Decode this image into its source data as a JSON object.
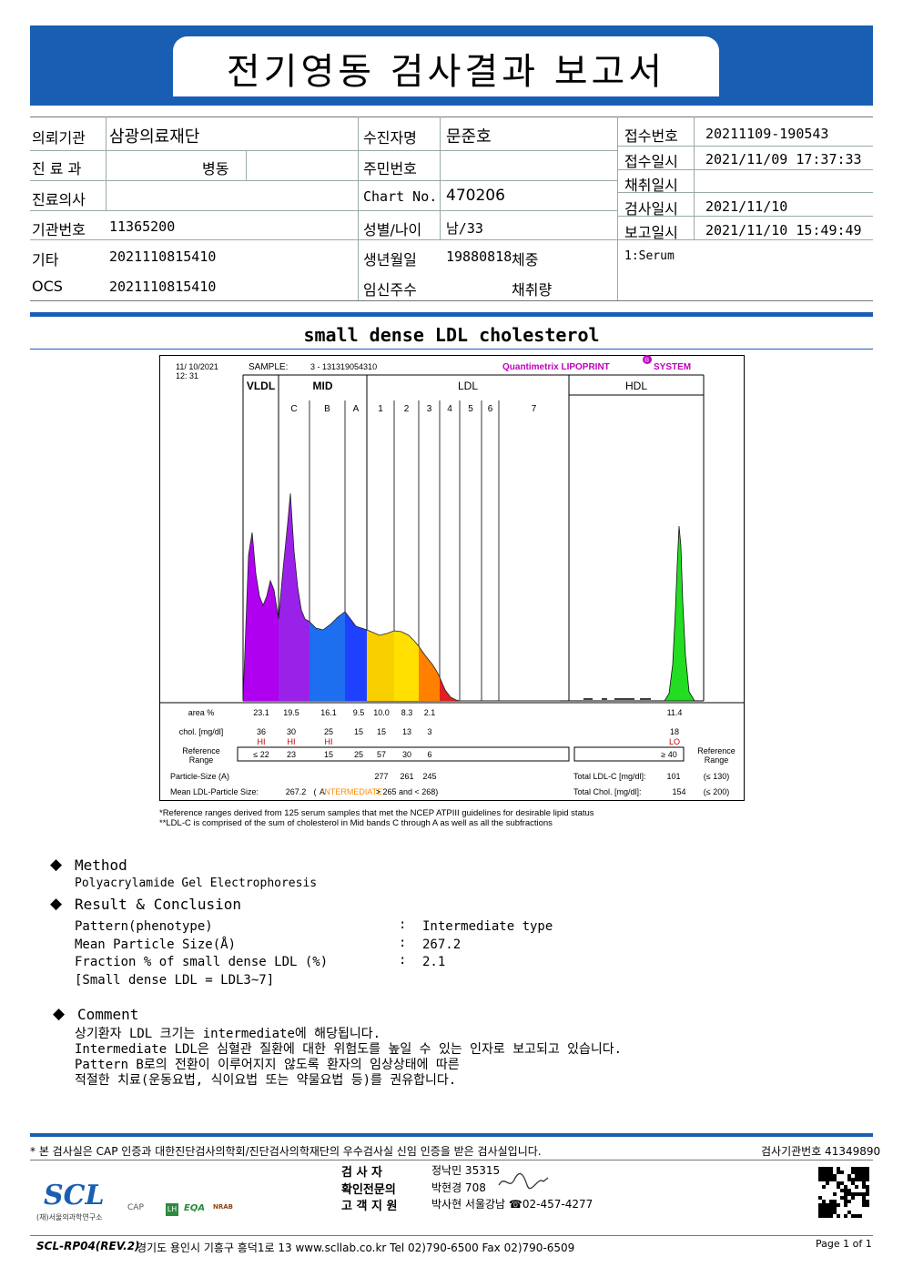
{
  "title": "전기영동 검사결과 보고서",
  "info": {
    "institution_label": "의뢰기관",
    "institution": "삼광의료재단",
    "dept_label": "진 료 과",
    "dept": "병동",
    "doctor_label": "진료의사",
    "inst_no_label": "기관번호",
    "inst_no": "11365200",
    "etc_label": "기타",
    "etc": "2021110815410",
    "ocs_label": "OCS",
    "ocs": "2021110815410",
    "patient_label": "수진자명",
    "patient": "문준호",
    "rrn_label": "주민번호",
    "rrn": "",
    "chart_label": "Chart No.",
    "chart_no": "470206",
    "sexage_label": "성별/나이",
    "sexage": "남/33",
    "dob_label": "생년월일",
    "dob": "19880818",
    "weight_label": "체중",
    "preg_label": "임신주수",
    "volume_label": "채취량",
    "receipt_no_label": "접수번호",
    "receipt_no": "20211109-190543",
    "receipt_time_label": "접수일시",
    "receipt_time": "2021/11/09 17:37:33",
    "collect_label": "채취일시",
    "collect_time": "",
    "test_label": "검사일시",
    "test_time": "2021/11/10",
    "report_label": "보고일시",
    "report_time": "2021/11/10 15:49:49",
    "specimen": "1:Serum"
  },
  "section_title": "small dense LDL cholesterol",
  "chart_data": {
    "type": "area",
    "date_line1": "11/ 10/2021",
    "date_line2": "12: 31",
    "sample_label": "SAMPLE:",
    "sample_id": "3 - 131319054310",
    "system_name": "Quantimetrix LIPOPRINT",
    "system_suffix": "SYSTEM",
    "registered_mark": "®",
    "groups": [
      {
        "name": "VLDL"
      },
      {
        "name": "MID"
      },
      {
        "name": "LDL"
      },
      {
        "name": "HDL"
      }
    ],
    "bands": [
      "C",
      "B",
      "A",
      "1",
      "2",
      "3",
      "4",
      "5",
      "6",
      "7"
    ],
    "area_label": "area %",
    "area_values": [
      "23.1",
      "19.5",
      "16.1",
      "9.5",
      "10.0",
      "8.3",
      "2.1"
    ],
    "hdl_area": "11.4",
    "chol_label": "chol. [mg/dl]",
    "chol_values": [
      "36",
      "30",
      "25",
      "15",
      "15",
      "13",
      "3"
    ],
    "hdl_chol": "18",
    "flags": [
      "HI",
      "HI",
      "HI"
    ],
    "hdl_flag": "LO",
    "ref_label_1": "Reference",
    "ref_label_2": "Range",
    "ref_values": [
      "≤ 22",
      "23",
      "15",
      "25",
      "57",
      "30",
      "6"
    ],
    "hdl_ref": "≥ 40",
    "particle_size_label": "Particle-Size (A)",
    "particle_sizes": [
      "277",
      "261",
      "245"
    ],
    "mean_size_label": "Mean LDL-Particle Size:",
    "mean_size_value": "267.2",
    "mean_size_class_a": "A",
    "mean_size_class_i": "INTERMEDIATE",
    "mean_size_range": "> 265 and < 268)",
    "mean_size_open": "(",
    "total_ldl_label": "Total LDL-C [mg/dl]:",
    "total_ldl": "101",
    "total_ldl_ref": "(≤ 130)",
    "total_chol_label": "Total Chol. [mg/dl]:",
    "total_chol": "154",
    "total_chol_ref": "(≤ 200)",
    "footnote1": "*Reference ranges derived from 125 serum samples that met the NCEP ATPIII guidelines for desirable lipid status",
    "footnote2": "**LDL-C is comprised of the sum of cholesterol in Mid bands C through A as well as all the subfractions",
    "colors": {
      "VLDL": "#b000f0",
      "C": "#9a22e8",
      "B": "#1e6ef0",
      "A": "#2040ff",
      "1": "#f8d000",
      "2": "#ffe000",
      "3": "#ff8000",
      "4": "#e02020",
      "HDL": "#22dd22"
    }
  },
  "method": {
    "title": "Method",
    "text": "Polyacrylamide Gel Electrophoresis"
  },
  "result": {
    "title": "Result & Conclusion",
    "rows": [
      {
        "label": "Pattern(phenotype)",
        "value": "Intermediate type"
      },
      {
        "label": "Mean Particle Size(Å)",
        "value": "267.2"
      },
      {
        "label": "Fraction % of small dense LDL (%)",
        "value": "2.1"
      }
    ],
    "colon": ":",
    "note": "[Small dense LDL = LDL3~7]"
  },
  "comment": {
    "title": "Comment",
    "lines": [
      "상기환자 LDL 크기는 intermediate에 해당됩니다.",
      "Intermediate LDL은 심혈관 질환에 대한 위험도를 높일 수 있는 인자로 보고되고 있습니다.",
      "Pattern B로의 전환이 이루어지지 않도록 환자의 임상상태에 따른",
      "적절한 치료(운동요법, 식이요법 또는 약물요법 등)를 권유합니다."
    ]
  },
  "footer": {
    "notice": "* 본 검사실은 CAP 인증과 대한진단검사의학회/진단검사의학재단의 우수검사실 신임 인증을 받은 검사실입니다.",
    "lab_no": "검사기관번호 41349890",
    "tester_label": "검   사   자",
    "tester": "정낙민 35315",
    "confirm_label": "확인전문의",
    "confirm": "박현경 708",
    "contact_label": "고 객 지 원",
    "contact": "박사현 서울강남 ☎02-457-4277",
    "logo": "SCL",
    "logo_sub": "(재)서울의과학연구소",
    "form_no": "SCL-RP04(REV.2)",
    "address": "경기도 용인시 기흥구 흥덕1로 13  www.scllab.co.kr  Tel 02)790-6500  Fax 02)790-6509",
    "page": "Page 1 of 1",
    "badges": [
      "CAP",
      "LH",
      "EQA",
      "NRAB"
    ]
  }
}
